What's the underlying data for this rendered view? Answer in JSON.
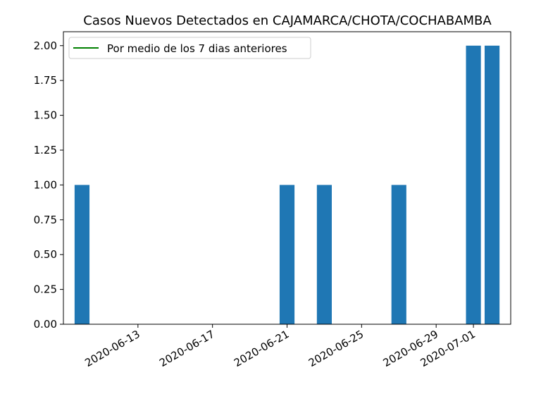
{
  "chart_data": {
    "type": "bar",
    "title": "Casos Nuevos Detectados en CAJAMARCA/CHOTA/COCHABAMBA",
    "xlabel": "",
    "ylabel": "",
    "xlim": [
      "2020-06-09",
      "2020-07-03"
    ],
    "ylim": [
      0,
      2.1
    ],
    "x_ticks": [
      "2020-06-13",
      "2020-06-17",
      "2020-06-21",
      "2020-06-25",
      "2020-06-29",
      "2020-07-01"
    ],
    "y_ticks": [
      "0.00",
      "0.25",
      "0.50",
      "0.75",
      "1.00",
      "1.25",
      "1.50",
      "1.75",
      "2.00"
    ],
    "bars": [
      {
        "date": "2020-06-10",
        "value": 1
      },
      {
        "date": "2020-06-21",
        "value": 1
      },
      {
        "date": "2020-06-23",
        "value": 1
      },
      {
        "date": "2020-06-27",
        "value": 1
      },
      {
        "date": "2020-07-01",
        "value": 2
      },
      {
        "date": "2020-07-02",
        "value": 2
      }
    ],
    "series": [
      {
        "name": "Por medio de los 7 dias anteriores",
        "color": "#008000",
        "values": []
      }
    ],
    "bar_color": "#1f77b4",
    "legend_position": "upper-left",
    "grid": false
  }
}
